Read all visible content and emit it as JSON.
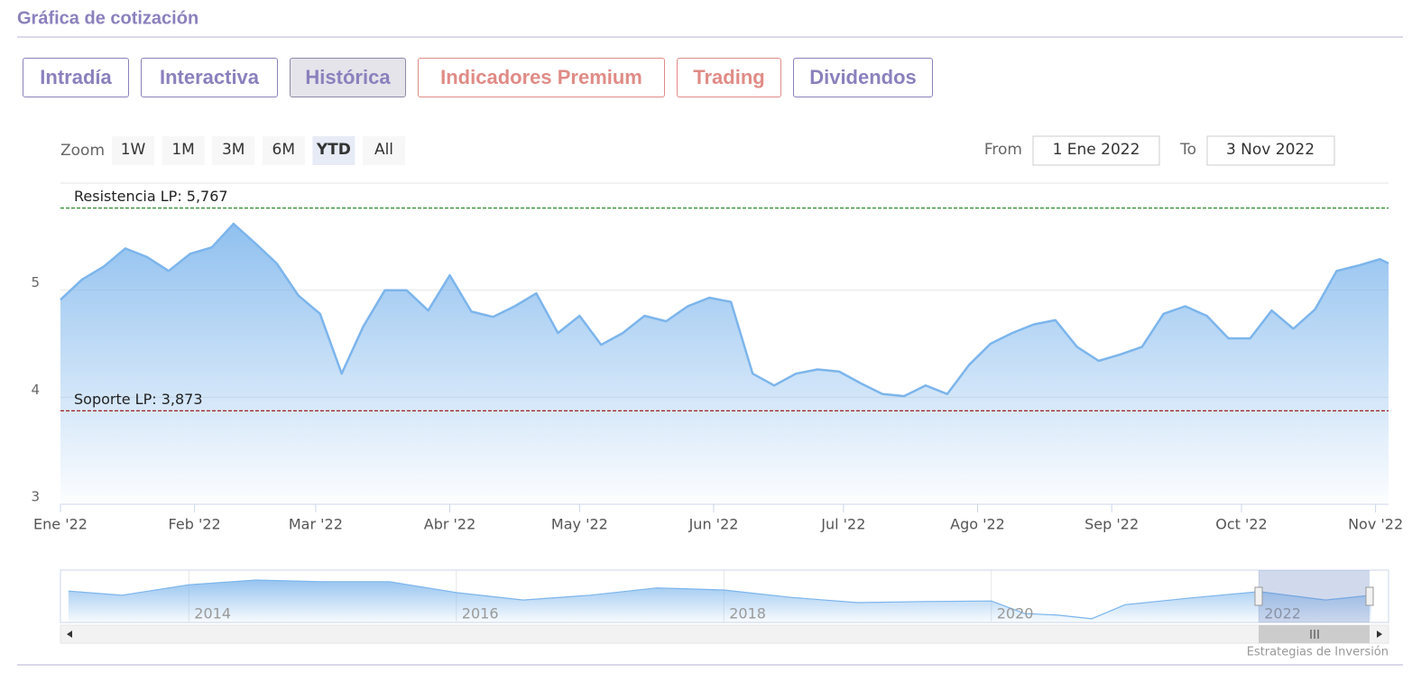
{
  "header": {
    "title": "Gráfica de cotización"
  },
  "tabs": [
    {
      "label": "Intradía",
      "color": "#8b80bd",
      "active": false
    },
    {
      "label": "Interactiva",
      "color": "#8b80bd",
      "active": false
    },
    {
      "label": "Histórica",
      "color": "#8b80bd",
      "active": true
    },
    {
      "label": "Indicadores Premium",
      "color": "#e08b86",
      "active": false
    },
    {
      "label": "Trading",
      "color": "#e08b86",
      "active": false
    },
    {
      "label": "Dividendos",
      "color": "#8b80bd",
      "active": false
    }
  ],
  "zoom": {
    "label": "Zoom",
    "buttons": [
      {
        "label": "1W",
        "active": false
      },
      {
        "label": "1M",
        "active": false
      },
      {
        "label": "3M",
        "active": false
      },
      {
        "label": "6M",
        "active": false
      },
      {
        "label": "YTD",
        "active": true
      },
      {
        "label": "All",
        "active": false
      }
    ]
  },
  "range": {
    "from_label": "From",
    "from": "1 Ene 2022",
    "to_label": "To",
    "to": "3 Nov 2022"
  },
  "chart_data": [
    {
      "type": "area",
      "x": [
        0,
        5,
        10,
        15,
        20,
        25,
        30,
        35,
        40,
        45,
        50,
        55,
        60,
        65,
        70,
        75,
        80,
        85,
        90,
        95,
        100,
        105,
        110,
        115,
        120,
        125,
        130,
        135,
        140,
        145,
        150,
        155,
        160,
        165,
        170,
        175,
        180,
        185,
        190,
        195,
        200,
        205,
        210,
        215,
        220,
        225,
        230,
        235,
        240,
        245,
        250,
        255,
        260,
        265,
        270,
        275,
        280,
        285,
        290,
        295,
        300,
        305,
        307
      ],
      "values": [
        4.91,
        5.1,
        5.22,
        5.39,
        5.31,
        5.18,
        5.34,
        5.4,
        5.62,
        5.44,
        5.25,
        4.95,
        4.78,
        4.22,
        4.66,
        5.0,
        5.0,
        4.81,
        5.14,
        4.8,
        4.75,
        4.85,
        4.97,
        4.6,
        4.76,
        4.49,
        4.6,
        4.76,
        4.71,
        4.85,
        4.93,
        4.89,
        4.22,
        4.11,
        4.22,
        4.26,
        4.24,
        4.13,
        4.03,
        4.01,
        4.11,
        4.03,
        4.3,
        4.5,
        4.6,
        4.68,
        4.72,
        4.47,
        4.34,
        4.4,
        4.47,
        4.78,
        4.85,
        4.76,
        4.55,
        4.55,
        4.81,
        4.64,
        4.82,
        5.18,
        5.23,
        5.29,
        5.25
      ],
      "color": "#7cb5ec",
      "xlim": [
        0,
        307
      ],
      "xticks": [
        {
          "value": 0,
          "label": "Ene '22"
        },
        {
          "value": 31,
          "label": "Feb '22"
        },
        {
          "value": 59,
          "label": "Mar '22"
        },
        {
          "value": 90,
          "label": "Abr '22"
        },
        {
          "value": 120,
          "label": "May '22"
        },
        {
          "value": 151,
          "label": "Jun '22"
        },
        {
          "value": 181,
          "label": "Jul '22"
        },
        {
          "value": 212,
          "label": "Ago '22"
        },
        {
          "value": 243,
          "label": "Sep '22"
        },
        {
          "value": 273,
          "label": "Oct '22"
        },
        {
          "value": 304,
          "label": "Nov '22"
        }
      ],
      "ylim": [
        3,
        6
      ],
      "yticks": [
        3,
        4,
        5
      ],
      "grid": true,
      "reference_lines": [
        {
          "label": "Resistencia LP: 5,767",
          "value": 5.767,
          "color": "#2e8b2e"
        },
        {
          "label": "Soporte LP: 3,873",
          "value": 3.873,
          "color": "#a02020"
        }
      ]
    },
    {
      "type": "area",
      "x": [
        2013.1,
        2013.5,
        2014.0,
        2014.5,
        2015.0,
        2015.5,
        2016.0,
        2016.5,
        2017.0,
        2017.5,
        2018.0,
        2018.5,
        2019.0,
        2019.5,
        2020.0,
        2020.25,
        2020.5,
        2020.75,
        2021.0,
        2021.5,
        2022.0,
        2022.5,
        2022.84
      ],
      "values": [
        5.0,
        4.6,
        5.6,
        6.05,
        5.9,
        5.9,
        4.85,
        4.15,
        4.6,
        5.3,
        5.1,
        4.4,
        3.9,
        4.0,
        4.05,
        2.85,
        2.7,
        2.35,
        3.7,
        4.35,
        4.95,
        4.15,
        4.6
      ],
      "color": "#7cb5ec",
      "xlim": [
        2013.04,
        2022.97
      ],
      "xticks": [
        2014,
        2016,
        2018,
        2020,
        2022
      ],
      "ylim": [
        2,
        7
      ],
      "grid": true
    }
  ],
  "credit": "Estrategias de Inversión"
}
